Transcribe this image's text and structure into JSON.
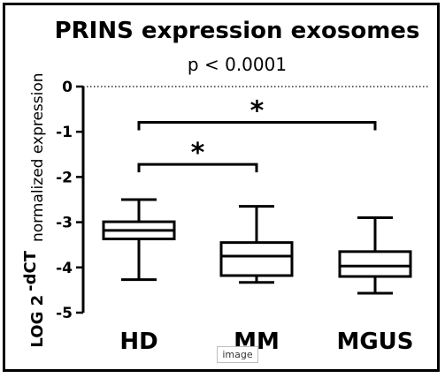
{
  "chart_data": {
    "type": "box",
    "title": "PRINS expression exosomes",
    "subtitle": "p < 0.0001",
    "ylabel_main": "LOG 2",
    "ylabel_sup": "-dCT",
    "ylabel_sub": "normalized expression",
    "ylim": [
      -5,
      0
    ],
    "yticks": [
      0,
      -1,
      -2,
      -3,
      -4,
      -5
    ],
    "ytick_labels": [
      "0",
      "-1",
      "-2",
      "-3",
      "-4",
      "-5"
    ],
    "reference_line": {
      "y": 0,
      "style": "dotted"
    },
    "categories": [
      "HD",
      "MM",
      "MGUS"
    ],
    "boxes": [
      {
        "name": "HD",
        "whisker_low": -4.27,
        "q1": -3.37,
        "median": -3.18,
        "q3": -2.99,
        "whisker_high": -2.5
      },
      {
        "name": "MM",
        "whisker_low": -4.33,
        "q1": -4.18,
        "median": -3.75,
        "q3": -3.45,
        "whisker_high": -2.65
      },
      {
        "name": "MGUS",
        "whisker_low": -4.57,
        "q1": -4.2,
        "median": -3.97,
        "q3": -3.65,
        "whisker_high": -2.9
      }
    ],
    "significance": [
      {
        "from": "HD",
        "to": "MM",
        "level": -1.72,
        "label": "*"
      },
      {
        "from": "HD",
        "to": "MGUS",
        "level": -0.79,
        "label": "*"
      }
    ]
  },
  "overlay": {
    "tag_label": "image"
  }
}
